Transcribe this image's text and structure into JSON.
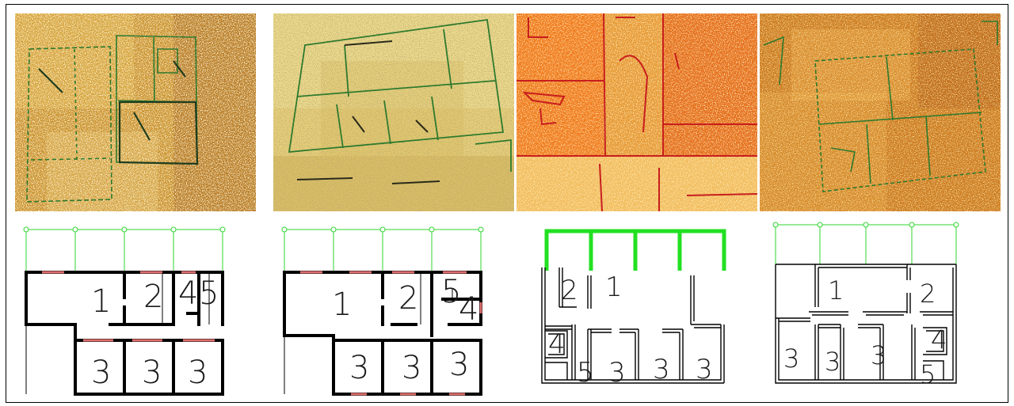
{
  "figure": {
    "panels": [
      {
        "id": "a",
        "sketch_palette": [
          "#c98f2a",
          "#e1b348",
          "#a8681c",
          "#f0d27a"
        ],
        "room_labels": [
          "1",
          "2",
          "4",
          "5",
          "3",
          "3",
          "3"
        ]
      },
      {
        "id": "b",
        "sketch_palette": [
          "#e8cf7a",
          "#f5e7a5",
          "#c9a548",
          "#d9b95e"
        ],
        "room_labels": [
          "1",
          "2",
          "5",
          "4",
          "3",
          "3",
          "3"
        ]
      },
      {
        "id": "c",
        "sketch_palette": [
          "#f07a1c",
          "#e3a640",
          "#d9621a",
          "#f2c868"
        ],
        "room_labels": [
          "2",
          "1",
          "4",
          "5",
          "3",
          "3",
          "3"
        ]
      },
      {
        "id": "d",
        "sketch_palette": [
          "#cc7a1e",
          "#e09a36",
          "#b25a14",
          "#f0b24e"
        ],
        "room_labels": [
          "1",
          "2",
          "3",
          "3",
          "3",
          "4",
          "5"
        ]
      }
    ],
    "colors": {
      "wall": "#000000",
      "window": "#e07070",
      "grid_line": "#2fd62f",
      "grid_bold": "#22e022",
      "sketch_green": "#2e7a2e",
      "sketch_red": "#c81e1e"
    }
  }
}
